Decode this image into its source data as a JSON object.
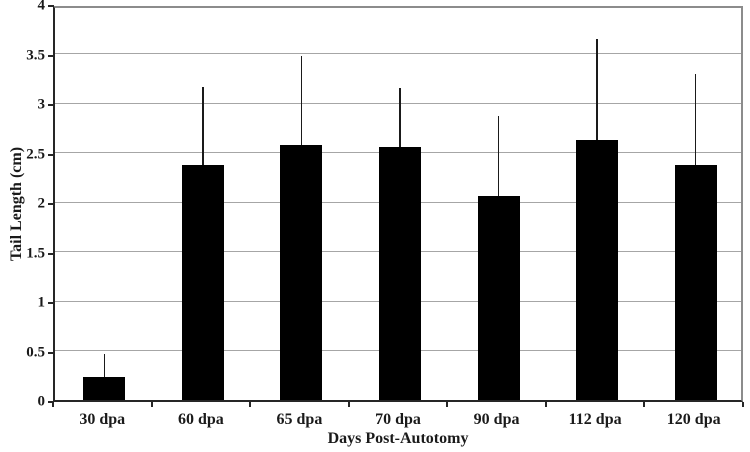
{
  "figure": {
    "background": "#ffffff"
  },
  "chart_data": {
    "type": "bar",
    "title": "",
    "xlabel": "Days Post-Autotomy",
    "ylabel": "Tail Length (cm)",
    "categories": [
      "30 dpa",
      "60 dpa",
      "65 dpa",
      "70 dpa",
      "90 dpa",
      "112 dpa",
      "120 dpa"
    ],
    "series": [
      {
        "name": "Tail Length (cm)",
        "values": [
          0.23,
          2.37,
          2.58,
          2.56,
          2.06,
          2.63,
          2.37
        ],
        "error_bar_tops": [
          0.46,
          3.16,
          3.47,
          3.15,
          2.87,
          3.65,
          3.29
        ]
      }
    ],
    "ylim": [
      0,
      4
    ],
    "ytick_values": [
      0,
      0.5,
      1,
      1.5,
      2,
      2.5,
      3,
      3.5,
      4
    ],
    "ytick_labels": [
      "0",
      "0.5",
      "1",
      "1.5",
      "2",
      "2.5",
      "3",
      "3.5",
      "4"
    ],
    "grid": true,
    "legend": "none",
    "colors": {
      "bar": "#000000",
      "error_bar": "#1a1a1a",
      "gridline": "#a6a6a6",
      "axis_line": "#262626",
      "plot_border": "#8c8c8c",
      "text": "#1a1a1a",
      "background": "#ffffff"
    }
  }
}
